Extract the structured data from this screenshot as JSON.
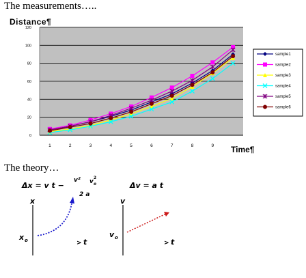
{
  "headings": {
    "measurements": "The measurements…..",
    "theory": "The theory…"
  },
  "chart_data": {
    "type": "line",
    "ylabel": "Distance¶",
    "xlabel": "Time¶",
    "x": [
      1,
      2,
      3,
      4,
      5,
      6,
      7,
      8,
      9,
      10
    ],
    "xticks": [
      "1",
      "2",
      "3",
      "4",
      "5",
      "6",
      "7",
      "8",
      "9"
    ],
    "yticks": [
      "0",
      "20",
      "40",
      "60",
      "80",
      "100",
      "120"
    ],
    "ylim": [
      0,
      120
    ],
    "grid": true,
    "legend_position": "right",
    "series": [
      {
        "name": "sample1",
        "color": "#000080",
        "marker": "diamond",
        "values": [
          6,
          10,
          15,
          21,
          28,
          37,
          46,
          58,
          72,
          90
        ]
      },
      {
        "name": "sample2",
        "color": "#ff00ff",
        "marker": "square",
        "values": [
          7,
          11,
          17,
          24,
          32,
          42,
          53,
          66,
          81,
          98
        ]
      },
      {
        "name": "sample3",
        "color": "#ffff00",
        "marker": "triangle",
        "values": [
          4,
          7,
          11,
          17,
          24,
          32,
          41,
          54,
          69,
          86
        ]
      },
      {
        "name": "sample4",
        "color": "#00ffff",
        "marker": "x",
        "values": [
          3,
          6,
          10,
          15,
          21,
          29,
          37,
          49,
          63,
          80
        ]
      },
      {
        "name": "sample5",
        "color": "#800080",
        "marker": "star",
        "values": [
          6,
          10,
          15,
          22,
          30,
          39,
          49,
          61,
          76,
          95
        ]
      },
      {
        "name": "sample6",
        "color": "#800000",
        "marker": "circle",
        "values": [
          5,
          9,
          13,
          19,
          26,
          35,
          44,
          56,
          70,
          88
        ]
      }
    ]
  },
  "theory": {
    "eq1_main": "Δx = v t −",
    "eq1_frac1_num": "v²",
    "eq1_frac1_den": "2 a",
    "eq1_frac2": "v",
    "eq1_frac2_sub": "o",
    "eq1_frac2_sup": "2",
    "eq2": "Δv = a t",
    "graph1": {
      "yaxis": "x",
      "xaxis": "t",
      "origin": "x",
      "origin_sub": "o",
      "curve_color": "#1a1acc"
    },
    "graph2": {
      "yaxis": "v",
      "xaxis": "t",
      "origin": "v",
      "origin_sub": "o",
      "line_color": "#cc1a1a"
    },
    "arrow_glyph": ">"
  }
}
